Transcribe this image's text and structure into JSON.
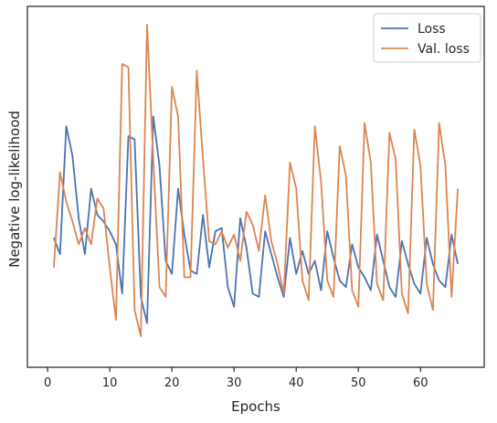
{
  "chart_data": {
    "type": "line",
    "title": "",
    "xlabel": "Epochs",
    "ylabel": "Negative log-likelihood",
    "xlim": [
      -3.25,
      70.25
    ],
    "ylim": [
      0,
      100
    ],
    "xticks": [
      0,
      10,
      20,
      30,
      40,
      50,
      60
    ],
    "xtick_labels": [
      "0",
      "10",
      "20",
      "30",
      "40",
      "50",
      "60"
    ],
    "yticks_visible": false,
    "grid": false,
    "legend": "top-right",
    "x": [
      1,
      2,
      3,
      4,
      5,
      6,
      7,
      8,
      9,
      10,
      11,
      12,
      13,
      14,
      15,
      16,
      17,
      18,
      19,
      20,
      21,
      22,
      23,
      24,
      25,
      26,
      27,
      28,
      29,
      30,
      31,
      32,
      33,
      34,
      35,
      36,
      37,
      38,
      39,
      40,
      41,
      42,
      43,
      44,
      45,
      46,
      47,
      48,
      49,
      50,
      51,
      52,
      53,
      54,
      55,
      56,
      57,
      58,
      59,
      60,
      61,
      62,
      63,
      64,
      65,
      66
    ],
    "series": [
      {
        "name": "Loss",
        "color": "#4c72b0",
        "values": [
          35,
          30,
          69,
          60,
          41,
          30,
          50,
          42,
          40,
          37,
          33,
          18,
          66,
          65,
          17,
          9,
          72,
          57,
          28,
          24,
          50,
          36,
          25,
          24,
          42,
          26,
          37,
          38,
          20,
          14,
          41,
          32,
          18,
          17,
          37,
          30,
          23,
          17,
          35,
          24,
          31,
          24,
          28,
          19,
          37,
          29,
          22,
          20,
          33,
          26,
          23,
          19,
          36,
          28,
          20,
          17,
          34,
          27,
          21,
          18,
          35,
          27,
          22,
          20,
          36,
          27
        ]
      },
      {
        "name": "Val. loss",
        "color": "#dd8452",
        "values": [
          26,
          55,
          46,
          40,
          33,
          38,
          33,
          47,
          44,
          26,
          10,
          88,
          87,
          13,
          5,
          100,
          59,
          20,
          17,
          81,
          72,
          23,
          23,
          86,
          59,
          34,
          33,
          37,
          32,
          36,
          28,
          43,
          39,
          31,
          48,
          34,
          27,
          18,
          58,
          50,
          22,
          16,
          69,
          52,
          22,
          17,
          63,
          54,
          19,
          14,
          70,
          58,
          21,
          16,
          67,
          59,
          18,
          12,
          68,
          57,
          21,
          13,
          70,
          57,
          17,
          50
        ]
      }
    ]
  }
}
